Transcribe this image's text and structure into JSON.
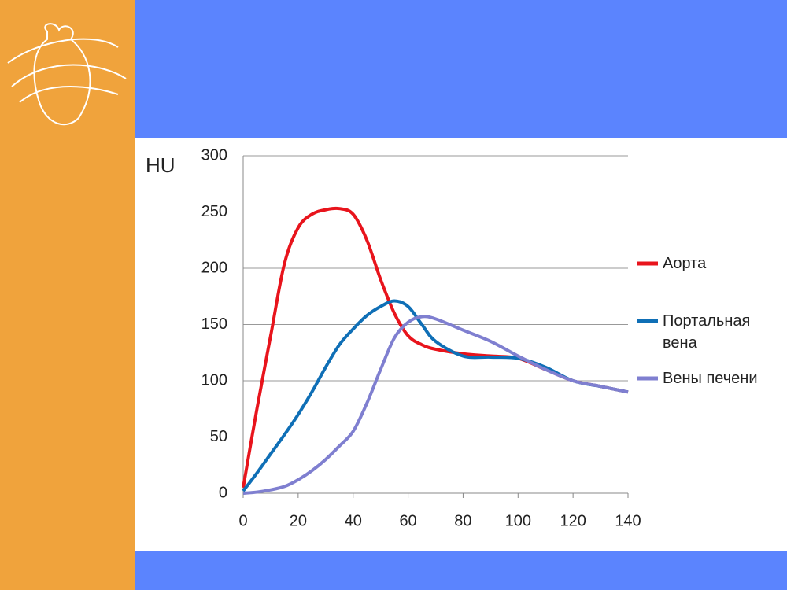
{
  "chart_data": {
    "type": "line",
    "ylabel": "HU",
    "x": [
      0,
      5,
      10,
      15,
      20,
      25,
      30,
      35,
      40,
      45,
      50,
      55,
      60,
      65,
      70,
      80,
      90,
      100,
      110,
      120,
      130,
      140
    ],
    "series": [
      {
        "name": "Аорта",
        "color": "#e8141c",
        "values": [
          5,
          75,
          140,
          204,
          236,
          248,
          252,
          253,
          248,
          225,
          190,
          160,
          140,
          132,
          128,
          124,
          122,
          120,
          110,
          100,
          95,
          90
        ]
      },
      {
        "name": "Портальная вена",
        "color": "#0f6fb6",
        "values": [
          2,
          18,
          35,
          52,
          70,
          90,
          112,
          132,
          146,
          158,
          166,
          171,
          166,
          150,
          135,
          122,
          121,
          120,
          112,
          100,
          95,
          90
        ]
      },
      {
        "name": "Вены печени",
        "color": "#7f7fd0",
        "values": [
          0,
          1,
          3,
          6,
          12,
          20,
          30,
          42,
          55,
          80,
          110,
          138,
          152,
          157,
          155,
          145,
          135,
          122,
          110,
          100,
          95,
          90
        ]
      }
    ],
    "xlim": [
      0,
      140
    ],
    "xticks": [
      0,
      20,
      40,
      60,
      80,
      100,
      120,
      140
    ],
    "ylim": [
      0,
      300
    ],
    "yticks": [
      0,
      50,
      100,
      150,
      200,
      250,
      300
    ],
    "grid": true
  }
}
